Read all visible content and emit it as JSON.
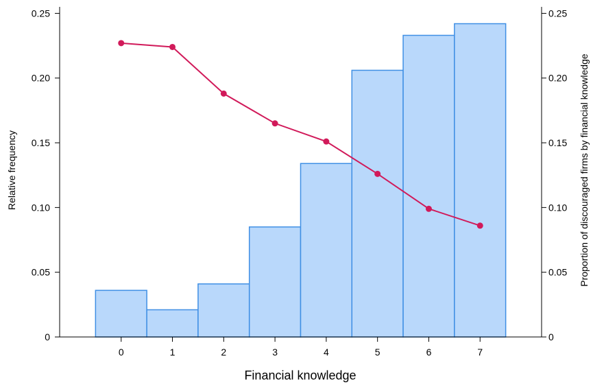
{
  "chart_data": {
    "type": "bar",
    "title": "",
    "xlabel": "Financial knowledge",
    "ylabel": "Relative frequency",
    "y2label": "Proportion of discouraged firms by financial knowledge",
    "categories": [
      0,
      1,
      2,
      3,
      4,
      5,
      6,
      7
    ],
    "xlim": [
      -1.2,
      8.2
    ],
    "ylim": [
      0,
      0.255
    ],
    "y2lim": [
      0,
      0.255
    ],
    "yticks": [
      0,
      0.05,
      0.1,
      0.15,
      0.2,
      0.25
    ],
    "ytick_labels": [
      "0",
      "0.05",
      "0.10",
      "0.15",
      "0.20",
      "0.25"
    ],
    "y2ticks": [
      0,
      0.05,
      0.1,
      0.15,
      0.2,
      0.25
    ],
    "y2tick_labels": [
      "0",
      "0.05",
      "0.10",
      "0.15",
      "0.20",
      "0.25"
    ],
    "grid": false,
    "series": [
      {
        "type": "bar",
        "axis": "left",
        "values": [
          0.036,
          0.021,
          0.041,
          0.085,
          0.134,
          0.206,
          0.233,
          0.242
        ],
        "color": "#b9d8fb",
        "edge_color": "#3f8fe4"
      },
      {
        "type": "line",
        "axis": "right",
        "values": [
          0.227,
          0.224,
          0.188,
          0.165,
          0.151,
          0.126,
          0.099,
          0.086
        ],
        "color": "#d11a5a"
      }
    ]
  }
}
